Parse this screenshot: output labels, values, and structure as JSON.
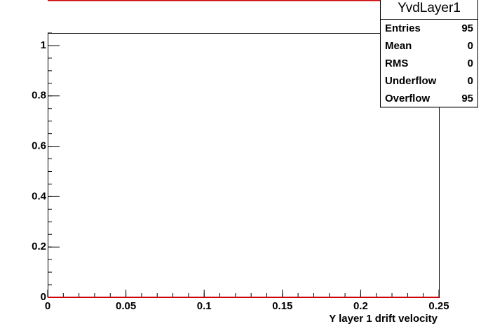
{
  "chart_data": {
    "type": "histogram",
    "bins": [
      0,
      0.25
    ],
    "values": [
      0
    ],
    "color": "#cc0000",
    "xlabel": "Y layer 1 drift velocity",
    "xlim": [
      0,
      0.25
    ],
    "xticks": [
      0,
      0.05,
      0.1,
      0.15,
      0.2,
      0.25
    ],
    "ylim": [
      0,
      1.05
    ],
    "yticks": [
      0,
      0.2,
      0.4,
      0.6,
      0.8,
      1
    ],
    "stats": {
      "title": "YvdLayer1",
      "rows": [
        [
          "Entries",
          95
        ],
        [
          "Mean",
          0
        ],
        [
          "RMS",
          0
        ],
        [
          "Underflow",
          0
        ],
        [
          "Overflow",
          95
        ]
      ]
    }
  }
}
